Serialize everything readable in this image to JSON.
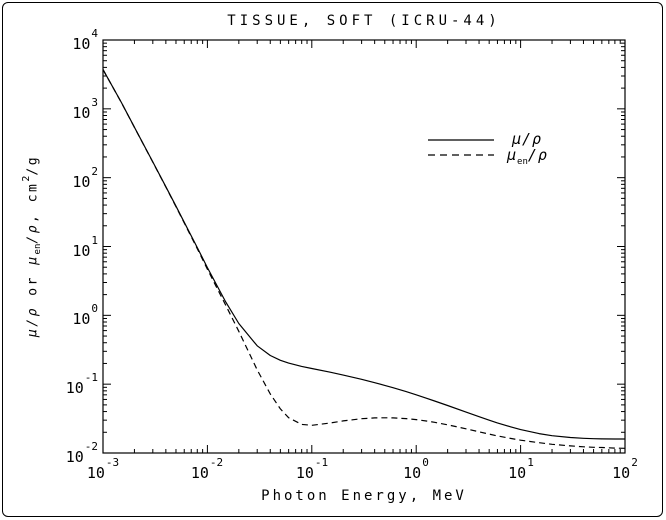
{
  "title": "TISSUE, SOFT (ICRU-44)",
  "labels": {
    "x": "Photon Energy, MeV",
    "y": {
      "g1": "μ/ρ",
      "mid": " or ",
      "g2": "μ",
      "sub": "en",
      "g2b": "/ρ",
      "rest": ", cm",
      "sup": "2",
      "tail": "/g"
    }
  },
  "legend": {
    "position": "upper-right-inside",
    "items": [
      {
        "pre": "μ/ρ",
        "sub": "",
        "post": "",
        "style": "solid"
      },
      {
        "pre": "μ",
        "sub": "en",
        "post": "/ρ",
        "style": "dashed"
      }
    ]
  },
  "colors": {
    "foreground": "#000000",
    "background": "#ffffff"
  },
  "chart_data": {
    "type": "line",
    "title": "TISSUE, SOFT (ICRU-44)",
    "xlabel": "Photon Energy, MeV",
    "ylabel": "μ/ρ or μen/ρ, cm²/g",
    "x_scale": "log",
    "y_scale": "log",
    "xlim": [
      0.001,
      100
    ],
    "ylim": [
      0.01,
      10000
    ],
    "x_tick_exponents": [
      -3,
      -2,
      -1,
      0,
      1,
      2
    ],
    "y_tick_exponents": [
      -2,
      -1,
      0,
      1,
      2,
      3,
      4
    ],
    "grid": false,
    "legend_position": "upper-right-inside",
    "x": [
      0.001,
      0.0015,
      0.002,
      0.003,
      0.004,
      0.005,
      0.006,
      0.008,
      0.01,
      0.015,
      0.02,
      0.03,
      0.04,
      0.05,
      0.06,
      0.08,
      0.1,
      0.15,
      0.2,
      0.3,
      0.4,
      0.5,
      0.6,
      0.8,
      1.0,
      1.25,
      1.5,
      2.0,
      3.0,
      4.0,
      5.0,
      6.0,
      8.0,
      10,
      15,
      20,
      30,
      40,
      50,
      60,
      80,
      100
    ],
    "series": [
      {
        "name": "μ/ρ",
        "style": "solid",
        "values": [
          3714,
          1237,
          541.1,
          169.7,
          73.68,
          38.52,
          22.57,
          9.624,
          4.937,
          1.558,
          0.7616,
          0.3604,
          0.2609,
          0.2223,
          0.2025,
          0.1813,
          0.1688,
          0.149,
          0.1356,
          0.1175,
          0.1051,
          0.09593,
          0.08873,
          0.07792,
          0.07006,
          0.06262,
          0.05699,
          0.04893,
          0.03929,
          0.03367,
          0.02998,
          0.02739,
          0.024,
          0.02191,
          0.01913,
          0.01785,
          0.0168,
          0.01635,
          0.01614,
          0.01602,
          0.01597,
          0.01599
        ]
      },
      {
        "name": "μen/ρ",
        "style": "dashed",
        "values": [
          3709,
          1232,
          538.5,
          168.4,
          72.93,
          37.92,
          22.07,
          9.294,
          4.684,
          1.396,
          0.5853,
          0.161,
          0.07199,
          0.04377,
          0.03259,
          0.02599,
          0.02523,
          0.02725,
          0.02924,
          0.03145,
          0.03231,
          0.0325,
          0.03235,
          0.03158,
          0.03056,
          0.0292,
          0.0279,
          0.02568,
          0.02245,
          0.02032,
          0.01882,
          0.01774,
          0.01628,
          0.01536,
          0.0141,
          0.0134,
          0.0127,
          0.0123,
          0.0121,
          0.012,
          0.0118,
          0.0117
        ]
      }
    ]
  }
}
